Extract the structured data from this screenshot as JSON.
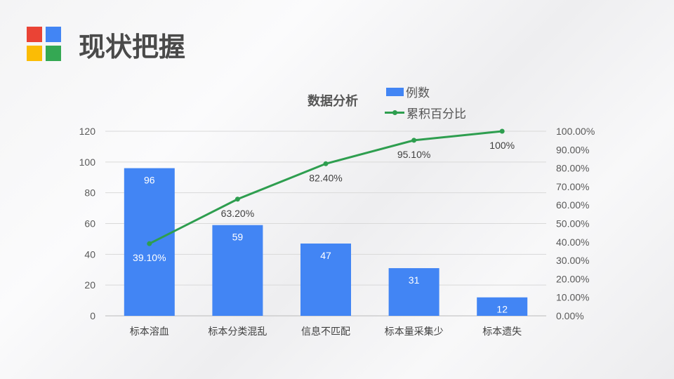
{
  "header": {
    "title": "现状把握",
    "logo_colors": [
      "#ea4335",
      "#4285f4",
      "#fbbc05",
      "#34a853"
    ]
  },
  "chart_data": {
    "type": "bar+line",
    "title": "数据分析",
    "categories": [
      "标本溶血",
      "标本分类混乱",
      "信息不匹配",
      "标本量采集少",
      "标本遗失"
    ],
    "series": [
      {
        "name": "例数",
        "type": "bar",
        "axis": "left",
        "color": "#4285f4",
        "values": [
          96,
          59,
          47,
          31,
          12
        ],
        "labels": [
          "96",
          "59",
          "47",
          "31",
          "12"
        ]
      },
      {
        "name": "累积百分比",
        "type": "line",
        "axis": "right",
        "color": "#2e9e4f",
        "values": [
          39.1,
          63.2,
          82.4,
          95.1,
          100
        ],
        "labels": [
          "39.10%",
          "63.20%",
          "82.40%",
          "95.10%",
          "100%"
        ]
      }
    ],
    "y_left": {
      "range": [
        0,
        120
      ],
      "ticks": [
        "0",
        "20",
        "40",
        "60",
        "80",
        "100",
        "120"
      ]
    },
    "y_right": {
      "range": [
        0,
        100
      ],
      "ticks": [
        "0.00%",
        "10.00%",
        "20.00%",
        "30.00%",
        "40.00%",
        "50.00%",
        "60.00%",
        "70.00%",
        "80.00%",
        "90.00%",
        "100.00%"
      ]
    },
    "grid": true,
    "legend_position": "top-right"
  }
}
